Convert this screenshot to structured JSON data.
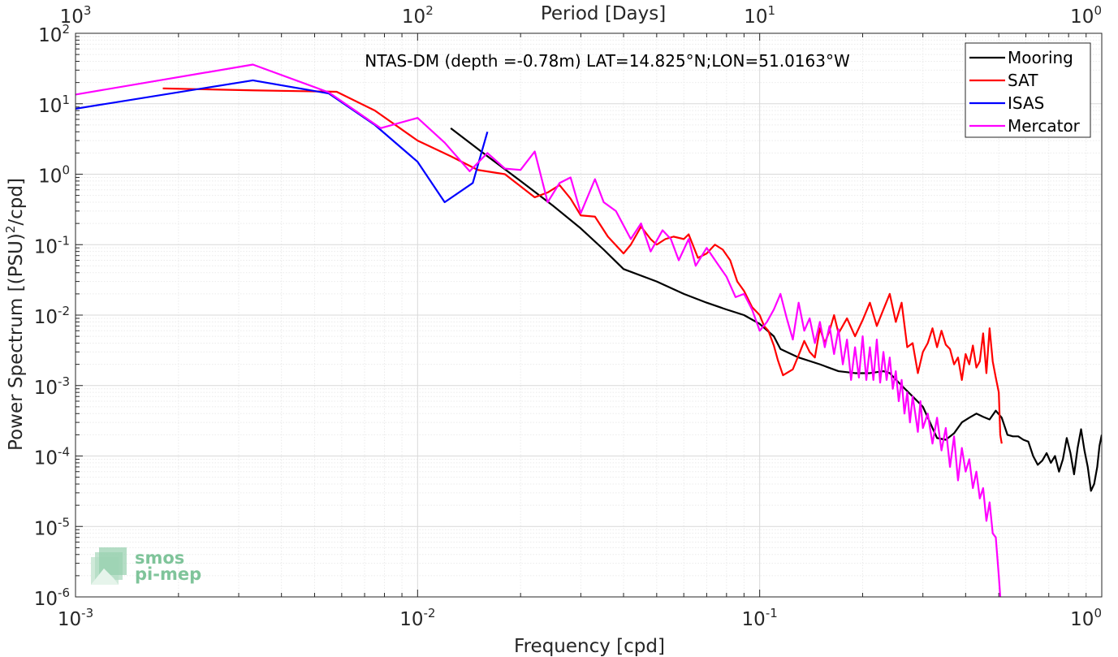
{
  "chart_data": {
    "type": "line",
    "title": "NTAS-DM (depth =-0.78m) LAT=14.825°N;LON=51.0163°W",
    "xlabel": "Frequency [cpd]",
    "ylabel": "Power Spectrum [(PSU)",
    "ylabel_exp": "2",
    "ylabel_tail": "/cpd]",
    "top_xlabel": "Period [Days]",
    "x_scale": "log",
    "y_scale": "log",
    "xlim": [
      0.001,
      1
    ],
    "ylim": [
      1e-06,
      100
    ],
    "grid": true,
    "legend_position": "top-right",
    "x_ticks": [
      {
        "base": "10",
        "exp": "-3",
        "value": 0.001
      },
      {
        "base": "10",
        "exp": "-2",
        "value": 0.01
      },
      {
        "base": "10",
        "exp": "-1",
        "value": 0.1
      },
      {
        "base": "10",
        "exp": "0",
        "value": 1
      }
    ],
    "top_ticks": [
      {
        "base": "10",
        "exp": "3",
        "value": 0.001
      },
      {
        "base": "10",
        "exp": "2",
        "value": 0.01
      },
      {
        "base": "10",
        "exp": "1",
        "value": 0.1
      },
      {
        "base": "10",
        "exp": "0",
        "value": 1
      }
    ],
    "y_ticks": [
      {
        "base": "10",
        "exp": "2",
        "value": 100
      },
      {
        "base": "10",
        "exp": "1",
        "value": 10
      },
      {
        "base": "10",
        "exp": "0",
        "value": 1
      },
      {
        "base": "10",
        "exp": "-1",
        "value": 0.1
      },
      {
        "base": "10",
        "exp": "-2",
        "value": 0.01
      },
      {
        "base": "10",
        "exp": "-3",
        "value": 0.001
      },
      {
        "base": "10",
        "exp": "-4",
        "value": 0.0001
      },
      {
        "base": "10",
        "exp": "-5",
        "value": 1e-05
      },
      {
        "base": "10",
        "exp": "-6",
        "value": 1e-06
      }
    ],
    "series": [
      {
        "name": "Mooring",
        "color": "#000000",
        "points": [
          [
            0.0125,
            4.5
          ],
          [
            0.016,
            1.8
          ],
          [
            0.02,
            0.8
          ],
          [
            0.025,
            0.35
          ],
          [
            0.03,
            0.17
          ],
          [
            0.035,
            0.085
          ],
          [
            0.04,
            0.045
          ],
          [
            0.05,
            0.03
          ],
          [
            0.06,
            0.02
          ],
          [
            0.07,
            0.015
          ],
          [
            0.08,
            0.012
          ],
          [
            0.09,
            0.01
          ],
          [
            0.1,
            0.0075
          ],
          [
            0.11,
            0.005
          ],
          [
            0.115,
            0.0033
          ],
          [
            0.13,
            0.0025
          ],
          [
            0.15,
            0.002
          ],
          [
            0.17,
            0.0016
          ],
          [
            0.19,
            0.0015
          ],
          [
            0.21,
            0.0015
          ],
          [
            0.23,
            0.0016
          ],
          [
            0.24,
            0.0015
          ],
          [
            0.26,
            0.001
          ],
          [
            0.28,
            0.0007
          ],
          [
            0.3,
            0.0005
          ],
          [
            0.32,
            0.00025
          ],
          [
            0.33,
            0.00018
          ],
          [
            0.35,
            0.00017
          ],
          [
            0.37,
            0.00021
          ],
          [
            0.39,
            0.0003
          ],
          [
            0.41,
            0.00035
          ],
          [
            0.43,
            0.0004
          ],
          [
            0.45,
            0.00036
          ],
          [
            0.47,
            0.00033
          ],
          [
            0.49,
            0.00044
          ],
          [
            0.51,
            0.00035
          ],
          [
            0.53,
            0.0002
          ],
          [
            0.55,
            0.00019
          ],
          [
            0.57,
            0.00019
          ],
          [
            0.59,
            0.00017
          ],
          [
            0.61,
            0.00016
          ],
          [
            0.63,
            0.0001
          ],
          [
            0.65,
            7.5e-05
          ],
          [
            0.67,
            8.6e-05
          ],
          [
            0.69,
            0.00011
          ],
          [
            0.71,
            8e-05
          ],
          [
            0.73,
            0.0001
          ],
          [
            0.75,
            6e-05
          ],
          [
            0.77,
            9e-05
          ],
          [
            0.79,
            0.00018
          ],
          [
            0.81,
            0.00011
          ],
          [
            0.83,
            5.5e-05
          ],
          [
            0.85,
            0.00013
          ],
          [
            0.87,
            0.00024
          ],
          [
            0.89,
            0.00012
          ],
          [
            0.91,
            7e-05
          ],
          [
            0.93,
            3.2e-05
          ],
          [
            0.95,
            4e-05
          ],
          [
            0.97,
            7e-05
          ],
          [
            0.985,
            0.00014
          ],
          [
            1.0,
            0.0002
          ]
        ]
      },
      {
        "name": "SAT",
        "color": "#ff0000",
        "points": [
          [
            0.0018,
            16.5
          ],
          [
            0.0033,
            15.5
          ],
          [
            0.0058,
            14.8
          ],
          [
            0.0075,
            8
          ],
          [
            0.01,
            3
          ],
          [
            0.0125,
            1.8
          ],
          [
            0.015,
            1.15
          ],
          [
            0.018,
            1.0
          ],
          [
            0.022,
            0.47
          ],
          [
            0.024,
            0.55
          ],
          [
            0.026,
            0.7
          ],
          [
            0.028,
            0.45
          ],
          [
            0.03,
            0.26
          ],
          [
            0.033,
            0.25
          ],
          [
            0.036,
            0.13
          ],
          [
            0.04,
            0.075
          ],
          [
            0.042,
            0.1
          ],
          [
            0.045,
            0.18
          ],
          [
            0.048,
            0.12
          ],
          [
            0.05,
            0.1
          ],
          [
            0.053,
            0.12
          ],
          [
            0.056,
            0.13
          ],
          [
            0.06,
            0.12
          ],
          [
            0.062,
            0.14
          ],
          [
            0.066,
            0.065
          ],
          [
            0.07,
            0.075
          ],
          [
            0.074,
            0.1
          ],
          [
            0.078,
            0.085
          ],
          [
            0.082,
            0.06
          ],
          [
            0.086,
            0.03
          ],
          [
            0.09,
            0.022
          ],
          [
            0.095,
            0.013
          ],
          [
            0.1,
            0.01
          ],
          [
            0.103,
            0.007
          ],
          [
            0.106,
            0.006
          ],
          [
            0.11,
            0.0037
          ],
          [
            0.113,
            0.0023
          ],
          [
            0.117,
            0.0014
          ],
          [
            0.125,
            0.0017
          ],
          [
            0.13,
            0.0027
          ],
          [
            0.135,
            0.0043
          ],
          [
            0.14,
            0.003
          ],
          [
            0.145,
            0.0025
          ],
          [
            0.15,
            0.0065
          ],
          [
            0.155,
            0.004
          ],
          [
            0.16,
            0.006
          ],
          [
            0.165,
            0.01
          ],
          [
            0.17,
            0.0055
          ],
          [
            0.18,
            0.009
          ],
          [
            0.19,
            0.005
          ],
          [
            0.2,
            0.0085
          ],
          [
            0.21,
            0.015
          ],
          [
            0.22,
            0.007
          ],
          [
            0.23,
            0.012
          ],
          [
            0.24,
            0.02
          ],
          [
            0.25,
            0.008
          ],
          [
            0.26,
            0.015
          ],
          [
            0.27,
            0.0035
          ],
          [
            0.28,
            0.004
          ],
          [
            0.29,
            0.0015
          ],
          [
            0.3,
            0.003
          ],
          [
            0.31,
            0.004
          ],
          [
            0.32,
            0.0065
          ],
          [
            0.33,
            0.0035
          ],
          [
            0.34,
            0.006
          ],
          [
            0.35,
            0.0038
          ],
          [
            0.36,
            0.0033
          ],
          [
            0.37,
            0.002
          ],
          [
            0.38,
            0.0025
          ],
          [
            0.39,
            0.0012
          ],
          [
            0.4,
            0.0028
          ],
          [
            0.41,
            0.002
          ],
          [
            0.42,
            0.0037
          ],
          [
            0.43,
            0.0018
          ],
          [
            0.44,
            0.0022
          ],
          [
            0.45,
            0.0055
          ],
          [
            0.46,
            0.0015
          ],
          [
            0.47,
            0.0065
          ],
          [
            0.48,
            0.0022
          ],
          [
            0.49,
            0.0013
          ],
          [
            0.5,
            0.0008
          ],
          [
            0.505,
            0.0002
          ],
          [
            0.51,
            0.00015
          ]
        ]
      },
      {
        "name": "ISAS",
        "color": "#0000ff",
        "points": [
          [
            0.001,
            8.5
          ],
          [
            0.0033,
            21.5
          ],
          [
            0.0055,
            14
          ],
          [
            0.0075,
            5
          ],
          [
            0.01,
            1.5
          ],
          [
            0.012,
            0.4
          ],
          [
            0.0145,
            0.75
          ],
          [
            0.016,
            4
          ]
        ]
      },
      {
        "name": "Mercator",
        "color": "#ff00ff",
        "points": [
          [
            0.001,
            13.5
          ],
          [
            0.0033,
            36
          ],
          [
            0.0055,
            14.5
          ],
          [
            0.0078,
            4.5
          ],
          [
            0.01,
            6.3
          ],
          [
            0.012,
            2.8
          ],
          [
            0.0142,
            1.1
          ],
          [
            0.016,
            2.0
          ],
          [
            0.018,
            1.2
          ],
          [
            0.02,
            1.15
          ],
          [
            0.022,
            2.1
          ],
          [
            0.024,
            0.4
          ],
          [
            0.026,
            0.75
          ],
          [
            0.028,
            0.9
          ],
          [
            0.03,
            0.28
          ],
          [
            0.033,
            0.85
          ],
          [
            0.035,
            0.4
          ],
          [
            0.038,
            0.3
          ],
          [
            0.042,
            0.12
          ],
          [
            0.045,
            0.2
          ],
          [
            0.048,
            0.08
          ],
          [
            0.052,
            0.16
          ],
          [
            0.055,
            0.12
          ],
          [
            0.058,
            0.06
          ],
          [
            0.062,
            0.12
          ],
          [
            0.065,
            0.05
          ],
          [
            0.07,
            0.09
          ],
          [
            0.075,
            0.055
          ],
          [
            0.08,
            0.035
          ],
          [
            0.085,
            0.018
          ],
          [
            0.09,
            0.02
          ],
          [
            0.095,
            0.012
          ],
          [
            0.1,
            0.006
          ],
          [
            0.105,
            0.008
          ],
          [
            0.11,
            0.012
          ],
          [
            0.115,
            0.02
          ],
          [
            0.12,
            0.009
          ],
          [
            0.125,
            0.0045
          ],
          [
            0.13,
            0.015
          ],
          [
            0.135,
            0.006
          ],
          [
            0.14,
            0.009
          ],
          [
            0.145,
            0.004
          ],
          [
            0.15,
            0.008
          ],
          [
            0.155,
            0.0035
          ],
          [
            0.16,
            0.007
          ],
          [
            0.165,
            0.0028
          ],
          [
            0.17,
            0.0063
          ],
          [
            0.175,
            0.002
          ],
          [
            0.18,
            0.0045
          ],
          [
            0.185,
            0.0012
          ],
          [
            0.19,
            0.0035
          ],
          [
            0.195,
            0.0013
          ],
          [
            0.2,
            0.005
          ],
          [
            0.205,
            0.0012
          ],
          [
            0.21,
            0.0035
          ],
          [
            0.215,
            0.0012
          ],
          [
            0.22,
            0.0045
          ],
          [
            0.225,
            0.0011
          ],
          [
            0.23,
            0.003
          ],
          [
            0.235,
            0.0012
          ],
          [
            0.24,
            0.0025
          ],
          [
            0.245,
            0.0009
          ],
          [
            0.25,
            0.0016
          ],
          [
            0.255,
            0.0006
          ],
          [
            0.26,
            0.0012
          ],
          [
            0.265,
            0.0004
          ],
          [
            0.27,
            0.0008
          ],
          [
            0.275,
            0.0003
          ],
          [
            0.28,
            0.0007
          ],
          [
            0.285,
            0.0004
          ],
          [
            0.29,
            0.00022
          ],
          [
            0.295,
            0.0006
          ],
          [
            0.3,
            0.00025
          ],
          [
            0.31,
            0.0004
          ],
          [
            0.32,
            0.00015
          ],
          [
            0.33,
            0.00035
          ],
          [
            0.34,
            0.00012
          ],
          [
            0.35,
            0.00025
          ],
          [
            0.36,
            7e-05
          ],
          [
            0.37,
            0.00019
          ],
          [
            0.38,
            4.5e-05
          ],
          [
            0.39,
            0.00013
          ],
          [
            0.4,
            6e-05
          ],
          [
            0.41,
            9e-05
          ],
          [
            0.42,
            3.5e-05
          ],
          [
            0.43,
            6e-05
          ],
          [
            0.44,
            2.5e-05
          ],
          [
            0.45,
            3.5e-05
          ],
          [
            0.46,
            1.2e-05
          ],
          [
            0.47,
            2.2e-05
          ],
          [
            0.48,
            8e-06
          ],
          [
            0.49,
            7e-06
          ],
          [
            0.5,
            2e-06
          ],
          [
            0.505,
            1e-06
          ]
        ]
      }
    ]
  },
  "logo": {
    "line1": "smos",
    "line2": "pi-mep",
    "color": "#7fc49a"
  }
}
